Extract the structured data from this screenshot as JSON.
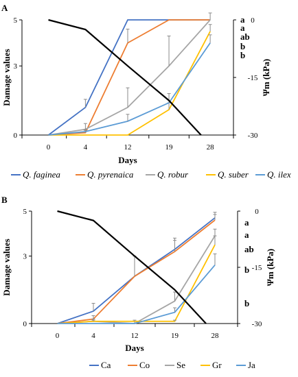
{
  "chart_data": [
    {
      "panel": "A",
      "type": "line",
      "x": [
        "0",
        "4",
        "12",
        "19",
        "28"
      ],
      "xlabel": "Days",
      "ylabel": "Damage values",
      "y2label": "Ψm (kPa)",
      "ylim": [
        0,
        5
      ],
      "yticks": [
        "0",
        "3",
        "5"
      ],
      "y2lim": [
        -30,
        0
      ],
      "y2ticks": [
        "0",
        "-15",
        "-30"
      ],
      "legend_position": "bottom",
      "legend_italic": true,
      "series": [
        {
          "name": "Q. faginea",
          "color": "#4472c4",
          "values": [
            0,
            1.2,
            5,
            5,
            5
          ],
          "errors": [
            0,
            0.35,
            0,
            0,
            0
          ]
        },
        {
          "name": "Q. pyrenaica",
          "color": "#ed7d31",
          "values": [
            0,
            0.1,
            4.0,
            5,
            5
          ],
          "errors": [
            0,
            0.1,
            0.6,
            0,
            0
          ]
        },
        {
          "name": "Q. robur",
          "color": "#a5a5a5",
          "values": [
            0,
            0.25,
            1.2,
            3.0,
            5
          ],
          "errors": [
            0,
            0.25,
            0.85,
            1.3,
            0.3
          ]
        },
        {
          "name": "Q. suber",
          "color": "#ffc000",
          "values": [
            0,
            0,
            0,
            1.1,
            4.5
          ],
          "errors": [
            0,
            0,
            0,
            0.3,
            0.3
          ]
        },
        {
          "name": "Q. ilex",
          "color": "#5b9bd5",
          "values": [
            0,
            0.15,
            0.6,
            1.4,
            4.0
          ],
          "errors": [
            0,
            0.1,
            0.3,
            0.4,
            0.35
          ]
        }
      ],
      "water_potential": {
        "color": "#000000",
        "x_days": [
          0,
          4,
          12,
          19,
          26
        ],
        "values_kPa": [
          0,
          -2.5,
          -12,
          -21,
          -30
        ]
      },
      "significance_letters": [
        "a",
        "a",
        "ab",
        "b",
        "b"
      ]
    },
    {
      "panel": "B",
      "type": "line",
      "x": [
        "0",
        "4",
        "12",
        "19",
        "28"
      ],
      "xlabel": "Days",
      "ylabel": "Damage values",
      "y2label": "Ψm (kPa)",
      "ylim": [
        0,
        5
      ],
      "yticks": [
        "0",
        "3",
        "5"
      ],
      "y2lim": [
        -30,
        0
      ],
      "y2ticks": [
        "0",
        "-15",
        "-30"
      ],
      "legend_position": "bottom",
      "legend_italic": false,
      "series": [
        {
          "name": "Ca",
          "color": "#4472c4",
          "values": [
            0,
            0.55,
            2.1,
            3.3,
            4.7
          ],
          "errors": [
            0,
            0.35,
            0.9,
            0.5,
            0.25
          ]
        },
        {
          "name": "Co",
          "color": "#ed7d31",
          "values": [
            0,
            0.2,
            2.1,
            3.2,
            4.6
          ],
          "errors": [
            0,
            0.15,
            0.9,
            0.5,
            0.25
          ]
        },
        {
          "name": "Se",
          "color": "#a5a5a5",
          "values": [
            0,
            0.1,
            0,
            1.0,
            3.9
          ],
          "errors": [
            0,
            0.1,
            0.1,
            0.4,
            0.3
          ]
        },
        {
          "name": "Gr",
          "color": "#ffc000",
          "values": [
            0,
            0.1,
            0.1,
            0.1,
            3.5
          ],
          "errors": [
            0,
            0.05,
            0.05,
            0.05,
            0.4
          ]
        },
        {
          "name": "Ja",
          "color": "#5b9bd5",
          "values": [
            0,
            0,
            0,
            0.5,
            2.6
          ],
          "errors": [
            0,
            0,
            0,
            0.2,
            0.5
          ]
        }
      ],
      "water_potential": {
        "color": "#000000",
        "x_days": [
          0,
          4,
          12,
          19,
          26
        ],
        "values_kPa": [
          0,
          -2.5,
          -12,
          -21,
          -30
        ]
      },
      "significance_letters": [
        "a",
        "a",
        "ab",
        "b",
        "b"
      ]
    }
  ]
}
